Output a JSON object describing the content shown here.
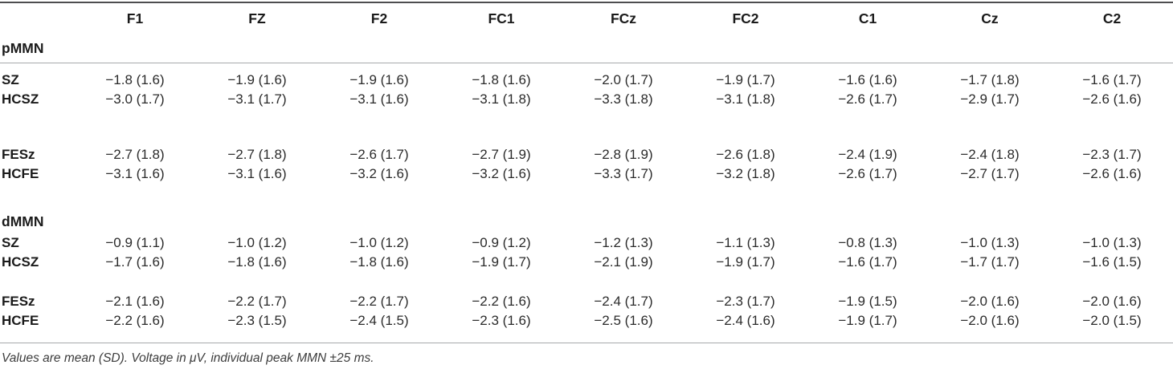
{
  "table": {
    "columns": [
      "F1",
      "FZ",
      "F2",
      "FC1",
      "FCz",
      "FC2",
      "C1",
      "Cz",
      "C2"
    ],
    "section1_label": "pMMN",
    "section2_label": "dMMN",
    "rows": [
      {
        "label": "SZ",
        "values": [
          "−1.8 (1.6)",
          "−1.9 (1.6)",
          "−1.9 (1.6)",
          "−1.8 (1.6)",
          "−2.0 (1.7)",
          "−1.9 (1.7)",
          "−1.6 (1.6)",
          "−1.7 (1.8)",
          "−1.6 (1.7)"
        ]
      },
      {
        "label": "HCSZ",
        "values": [
          "−3.0 (1.7)",
          "−3.1 (1.7)",
          "−3.1 (1.6)",
          "−3.1 (1.8)",
          "−3.3 (1.8)",
          "−3.1 (1.8)",
          "−2.6 (1.7)",
          "−2.9 (1.7)",
          "−2.6 (1.6)"
        ]
      },
      {
        "label": "FESz",
        "values": [
          "−2.7 (1.8)",
          "−2.7 (1.8)",
          "−2.6 (1.7)",
          "−2.7 (1.9)",
          "−2.8 (1.9)",
          "−2.6 (1.8)",
          "−2.4 (1.9)",
          "−2.4 (1.8)",
          "−2.3 (1.7)"
        ]
      },
      {
        "label": "HCFE",
        "values": [
          "−3.1 (1.6)",
          "−3.1 (1.6)",
          "−3.2 (1.6)",
          "−3.2 (1.6)",
          "−3.3 (1.7)",
          "−3.2 (1.8)",
          "−2.6 (1.7)",
          "−2.7 (1.7)",
          "−2.6 (1.6)"
        ]
      },
      {
        "label": "SZ",
        "values": [
          "−0.9 (1.1)",
          "−1.0 (1.2)",
          "−1.0 (1.2)",
          "−0.9 (1.2)",
          "−1.2 (1.3)",
          "−1.1 (1.3)",
          "−0.8 (1.3)",
          "−1.0 (1.3)",
          "−1.0 (1.3)"
        ]
      },
      {
        "label": "HCSZ",
        "values": [
          "−1.7 (1.6)",
          "−1.8 (1.6)",
          "−1.8 (1.6)",
          "−1.9 (1.7)",
          "−2.1 (1.9)",
          "−1.9 (1.7)",
          "−1.6 (1.7)",
          "−1.7 (1.7)",
          "−1.6 (1.5)"
        ]
      },
      {
        "label": "FESz",
        "values": [
          "−2.1 (1.6)",
          "−2.2 (1.7)",
          "−2.2 (1.7)",
          "−2.2 (1.6)",
          "−2.4 (1.7)",
          "−2.3 (1.7)",
          "−1.9 (1.5)",
          "−2.0 (1.6)",
          "−2.0 (1.6)"
        ]
      },
      {
        "label": "HCFE",
        "values": [
          "−2.2 (1.6)",
          "−2.3 (1.5)",
          "−2.4 (1.5)",
          "−2.3 (1.6)",
          "−2.5 (1.6)",
          "−2.4 (1.6)",
          "−1.9 (1.7)",
          "−2.0 (1.6)",
          "−2.0 (1.5)"
        ]
      }
    ],
    "footnote": "Values are mean (SD). Voltage in μV, individual peak MMN ±25 ms.",
    "colors": {
      "text": "#232323",
      "rule_dark": "#4d4d4f",
      "rule_light": "#a7a9ac"
    }
  }
}
